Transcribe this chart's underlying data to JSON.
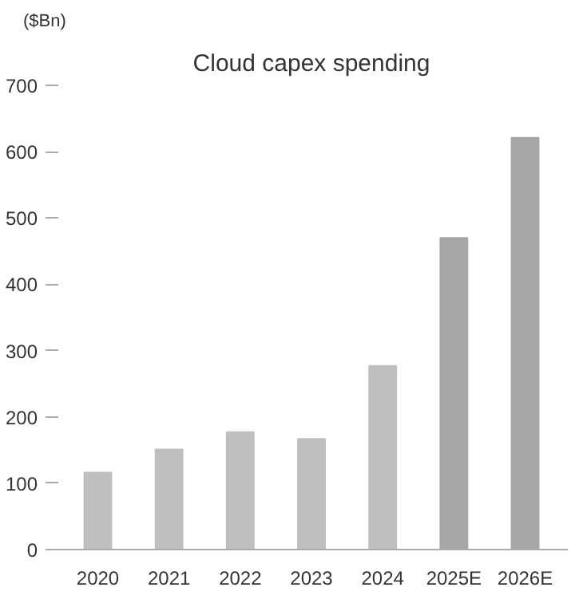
{
  "chart_data": {
    "type": "bar",
    "title": "Cloud capex spending",
    "ylabel": "($Bn)",
    "categories": [
      "2020",
      "2021",
      "2022",
      "2023",
      "2024",
      "2025E",
      "2026E"
    ],
    "values": [
      116,
      151,
      177,
      167,
      277,
      470,
      621
    ],
    "colors": [
      "#bfbfbf",
      "#bfbfbf",
      "#bfbfbf",
      "#bfbfbf",
      "#bfbfbf",
      "#a6a6a6",
      "#a6a6a6"
    ],
    "ylim": [
      0,
      700
    ],
    "yticks": [
      0,
      100,
      200,
      300,
      400,
      500,
      600,
      700
    ],
    "grid": false
  }
}
